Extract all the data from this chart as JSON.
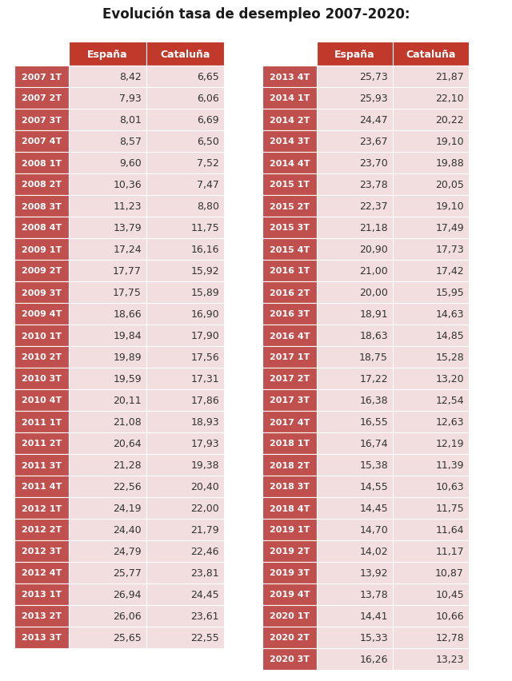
{
  "title": "Evolución tasa de desempleo 2007-2020:",
  "header_bg": "#c0392b",
  "header_text_color": "#ffffff",
  "row_label_bg": "#c0504d",
  "row_label_text_color": "#ffffff",
  "row_bg_light": "#f2dede",
  "data_text_color": "#333333",
  "left_table": [
    [
      "2007 1T",
      "8,42",
      "6,65"
    ],
    [
      "2007 2T",
      "7,93",
      "6,06"
    ],
    [
      "2007 3T",
      "8,01",
      "6,69"
    ],
    [
      "2007 4T",
      "8,57",
      "6,50"
    ],
    [
      "2008 1T",
      "9,60",
      "7,52"
    ],
    [
      "2008 2T",
      "10,36",
      "7,47"
    ],
    [
      "2008 3T",
      "11,23",
      "8,80"
    ],
    [
      "2008 4T",
      "13,79",
      "11,75"
    ],
    [
      "2009 1T",
      "17,24",
      "16,16"
    ],
    [
      "2009 2T",
      "17,77",
      "15,92"
    ],
    [
      "2009 3T",
      "17,75",
      "15,89"
    ],
    [
      "2009 4T",
      "18,66",
      "16,90"
    ],
    [
      "2010 1T",
      "19,84",
      "17,90"
    ],
    [
      "2010 2T",
      "19,89",
      "17,56"
    ],
    [
      "2010 3T",
      "19,59",
      "17,31"
    ],
    [
      "2010 4T",
      "20,11",
      "17,86"
    ],
    [
      "2011 1T",
      "21,08",
      "18,93"
    ],
    [
      "2011 2T",
      "20,64",
      "17,93"
    ],
    [
      "2011 3T",
      "21,28",
      "19,38"
    ],
    [
      "2011 4T",
      "22,56",
      "20,40"
    ],
    [
      "2012 1T",
      "24,19",
      "22,00"
    ],
    [
      "2012 2T",
      "24,40",
      "21,79"
    ],
    [
      "2012 3T",
      "24,79",
      "22,46"
    ],
    [
      "2012 4T",
      "25,77",
      "23,81"
    ],
    [
      "2013 1T",
      "26,94",
      "24,45"
    ],
    [
      "2013 2T",
      "26,06",
      "23,61"
    ],
    [
      "2013 3T",
      "25,65",
      "22,55"
    ]
  ],
  "right_table": [
    [
      "2013 4T",
      "25,73",
      "21,87"
    ],
    [
      "2014 1T",
      "25,93",
      "22,10"
    ],
    [
      "2014 2T",
      "24,47",
      "20,22"
    ],
    [
      "2014 3T",
      "23,67",
      "19,10"
    ],
    [
      "2014 4T",
      "23,70",
      "19,88"
    ],
    [
      "2015 1T",
      "23,78",
      "20,05"
    ],
    [
      "2015 2T",
      "22,37",
      "19,10"
    ],
    [
      "2015 3T",
      "21,18",
      "17,49"
    ],
    [
      "2015 4T",
      "20,90",
      "17,73"
    ],
    [
      "2016 1T",
      "21,00",
      "17,42"
    ],
    [
      "2016 2T",
      "20,00",
      "15,95"
    ],
    [
      "2016 3T",
      "18,91",
      "14,63"
    ],
    [
      "2016 4T",
      "18,63",
      "14,85"
    ],
    [
      "2017 1T",
      "18,75",
      "15,28"
    ],
    [
      "2017 2T",
      "17,22",
      "13,20"
    ],
    [
      "2017 3T",
      "16,38",
      "12,54"
    ],
    [
      "2017 4T",
      "16,55",
      "12,63"
    ],
    [
      "2018 1T",
      "16,74",
      "12,19"
    ],
    [
      "2018 2T",
      "15,38",
      "11,39"
    ],
    [
      "2018 3T",
      "14,55",
      "10,63"
    ],
    [
      "2018 4T",
      "14,45",
      "11,75"
    ],
    [
      "2019 1T",
      "14,70",
      "11,64"
    ],
    [
      "2019 2T",
      "14,02",
      "11,17"
    ],
    [
      "2019 3T",
      "13,92",
      "10,87"
    ],
    [
      "2019 4T",
      "13,78",
      "10,45"
    ],
    [
      "2020 1T",
      "14,41",
      "10,66"
    ],
    [
      "2020 2T",
      "15,33",
      "12,78"
    ],
    [
      "2020 3T",
      "16,26",
      "13,23"
    ]
  ],
  "col_headers": [
    "España",
    "Cataluña"
  ]
}
